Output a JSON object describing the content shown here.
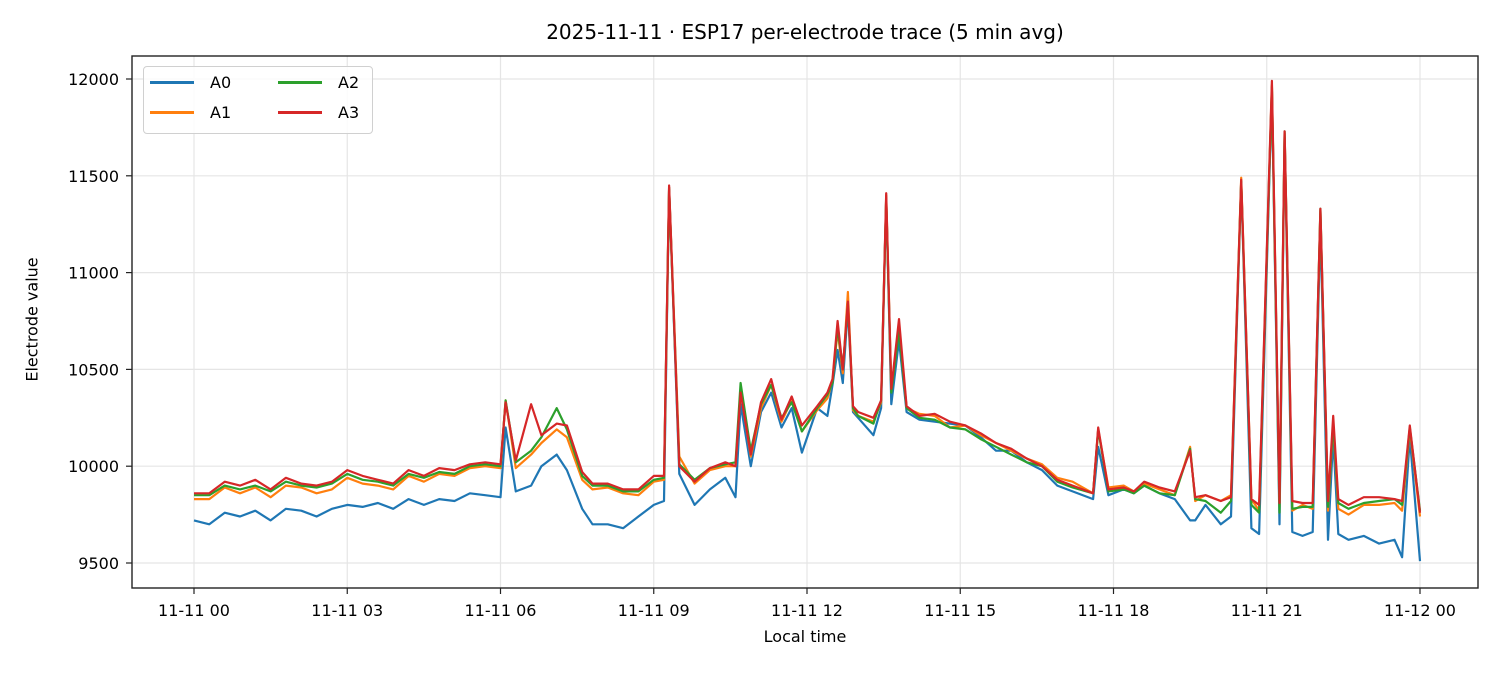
{
  "chart_data": {
    "type": "line",
    "title": "2025-11-11 · ESP17 per-electrode trace (5 min avg)",
    "xlabel": "Local time",
    "ylabel": "Electrode value",
    "xlim_hours": [
      -0.4,
      24.2
    ],
    "ylim": [
      9380,
      12120
    ],
    "grid": true,
    "legend_position": "upper left",
    "legend_columns": 2,
    "x_ticks": [
      {
        "hour": 0,
        "label": "11-11 00"
      },
      {
        "hour": 3,
        "label": "11-11 03"
      },
      {
        "hour": 6,
        "label": "11-11 06"
      },
      {
        "hour": 9,
        "label": "11-11 09"
      },
      {
        "hour": 12,
        "label": "11-11 12"
      },
      {
        "hour": 15,
        "label": "11-11 15"
      },
      {
        "hour": 18,
        "label": "11-11 18"
      },
      {
        "hour": 21,
        "label": "11-11 21"
      },
      {
        "hour": 24,
        "label": "11-12 00"
      }
    ],
    "y_ticks": [
      9500,
      10000,
      10500,
      11000,
      11500,
      12000
    ],
    "x_hours": [
      0,
      0.3,
      0.6,
      0.9,
      1.2,
      1.5,
      1.8,
      2.1,
      2.4,
      2.7,
      3.0,
      3.3,
      3.6,
      3.9,
      4.2,
      4.5,
      4.8,
      5.1,
      5.4,
      5.7,
      6.0,
      6.1,
      6.3,
      6.6,
      6.8,
      7.1,
      7.3,
      7.6,
      7.8,
      8.1,
      8.4,
      8.7,
      9.0,
      9.2,
      9.3,
      9.5,
      9.8,
      10.1,
      10.4,
      10.6,
      10.7,
      10.9,
      11.1,
      11.3,
      11.5,
      11.7,
      11.9,
      12.2,
      12.4,
      12.5,
      12.6,
      12.7,
      12.8,
      12.9,
      13.0,
      13.3,
      13.45,
      13.55,
      13.65,
      13.8,
      13.95,
      14.2,
      14.5,
      14.8,
      15.1,
      15.4,
      15.7,
      16.0,
      16.3,
      16.6,
      16.9,
      17.2,
      17.6,
      17.7,
      17.9,
      18.2,
      18.4,
      18.6,
      18.9,
      19.2,
      19.5,
      19.6,
      19.8,
      20.1,
      20.3,
      20.5,
      20.7,
      20.85,
      21.1,
      21.25,
      21.35,
      21.5,
      21.7,
      21.9,
      22.05,
      22.2,
      22.3,
      22.4,
      22.6,
      22.9,
      23.2,
      23.5,
      23.65,
      23.8,
      24.0
    ],
    "series": [
      {
        "name": "A0",
        "color": "#1f77b4",
        "values": [
          9720,
          9700,
          9760,
          9740,
          9770,
          9720,
          9780,
          9770,
          9740,
          9780,
          9800,
          9790,
          9810,
          9780,
          9830,
          9800,
          9830,
          9820,
          9860,
          9850,
          9840,
          10200,
          9870,
          9900,
          10000,
          10060,
          9980,
          9780,
          9700,
          9700,
          9680,
          9740,
          9800,
          9820,
          11440,
          9960,
          9800,
          9880,
          9940,
          9840,
          10320,
          10000,
          10280,
          10380,
          10200,
          10300,
          10070,
          10300,
          10260,
          10420,
          10600,
          10430,
          10820,
          10280,
          10250,
          10160,
          10300,
          11390,
          10320,
          10650,
          10280,
          10240,
          10230,
          10220,
          10210,
          10150,
          10080,
          10080,
          10020,
          9980,
          9900,
          9870,
          9830,
          10100,
          9850,
          9880,
          9860,
          9900,
          9860,
          9830,
          9720,
          9720,
          9800,
          9700,
          9740,
          11470,
          9680,
          9650,
          11940,
          9700,
          11700,
          9660,
          9640,
          9660,
          11250,
          9620,
          10150,
          9650,
          9620,
          9640,
          9600,
          9620,
          9530,
          10150,
          9510
        ]
      },
      {
        "name": "A1",
        "color": "#ff7f0e",
        "values": [
          9830,
          9830,
          9890,
          9860,
          9890,
          9840,
          9900,
          9890,
          9860,
          9880,
          9940,
          9910,
          9900,
          9880,
          9950,
          9920,
          9960,
          9950,
          9990,
          10000,
          9990,
          10340,
          9990,
          10060,
          10120,
          10190,
          10150,
          9930,
          9880,
          9890,
          9860,
          9850,
          9920,
          9930,
          11440,
          10050,
          9910,
          9980,
          10000,
          10000,
          10390,
          10050,
          10300,
          10420,
          10230,
          10340,
          10180,
          10290,
          10350,
          10440,
          10700,
          10480,
          10900,
          10290,
          10260,
          10230,
          10330,
          11400,
          10400,
          10720,
          10300,
          10270,
          10260,
          10200,
          10210,
          10160,
          10120,
          10080,
          10040,
          10010,
          9940,
          9920,
          9860,
          10190,
          9890,
          9900,
          9870,
          9910,
          9880,
          9850,
          10100,
          9820,
          9850,
          9820,
          9850,
          11490,
          9830,
          9770,
          11970,
          9790,
          11720,
          9770,
          9800,
          9780,
          11320,
          9770,
          10220,
          9780,
          9750,
          9800,
          9800,
          9810,
          9770,
          10190,
          9740
        ]
      },
      {
        "name": "A2",
        "color": "#2ca02c",
        "values": [
          9850,
          9850,
          9900,
          9880,
          9900,
          9870,
          9920,
          9900,
          9890,
          9910,
          9960,
          9930,
          9920,
          9900,
          9960,
          9940,
          9970,
          9960,
          10000,
          10010,
          10000,
          10340,
          10020,
          10080,
          10150,
          10300,
          10190,
          9950,
          9900,
          9900,
          9870,
          9870,
          9930,
          9940,
          11430,
          10010,
          9930,
          9990,
          10010,
          10020,
          10430,
          10080,
          10320,
          10420,
          10250,
          10330,
          10180,
          10300,
          10370,
          10430,
          10720,
          10500,
          10840,
          10300,
          10260,
          10220,
          10340,
          11380,
          10380,
          10700,
          10300,
          10250,
          10240,
          10200,
          10190,
          10140,
          10100,
          10060,
          10020,
          10000,
          9920,
          9890,
          9860,
          10190,
          9870,
          9880,
          9860,
          9900,
          9860,
          9850,
          10090,
          9830,
          9820,
          9760,
          9820,
          11470,
          9800,
          9760,
          11960,
          9760,
          11730,
          9780,
          9790,
          9790,
          11330,
          9790,
          10220,
          9810,
          9780,
          9810,
          9820,
          9830,
          9800,
          10200,
          9770
        ]
      },
      {
        "name": "A3",
        "color": "#d62728",
        "values": [
          9860,
          9860,
          9920,
          9900,
          9930,
          9880,
          9940,
          9910,
          9900,
          9920,
          9980,
          9950,
          9930,
          9910,
          9980,
          9950,
          9990,
          9980,
          10010,
          10020,
          10010,
          10330,
          10030,
          10320,
          10160,
          10220,
          10210,
          9970,
          9910,
          9910,
          9880,
          9880,
          9950,
          9950,
          11450,
          10000,
          9920,
          9990,
          10020,
          10000,
          10380,
          10060,
          10330,
          10450,
          10240,
          10360,
          10210,
          10310,
          10380,
          10450,
          10750,
          10500,
          10850,
          10310,
          10280,
          10250,
          10340,
          11410,
          10400,
          10760,
          10310,
          10260,
          10270,
          10230,
          10210,
          10170,
          10120,
          10090,
          10040,
          10000,
          9930,
          9900,
          9860,
          10200,
          9880,
          9890,
          9870,
          9920,
          9890,
          9870,
          10080,
          9840,
          9850,
          9820,
          9840,
          11480,
          9830,
          9800,
          11990,
          9810,
          11730,
          9820,
          9810,
          9810,
          11330,
          9820,
          10260,
          9830,
          9800,
          9840,
          9840,
          9830,
          9820,
          10210,
          9760
        ]
      }
    ]
  },
  "legend": {
    "items": [
      {
        "label": "A0",
        "color": "#1f77b4"
      },
      {
        "label": "A1",
        "color": "#ff7f0e"
      },
      {
        "label": "A2",
        "color": "#2ca02c"
      },
      {
        "label": "A3",
        "color": "#d62728"
      }
    ]
  }
}
